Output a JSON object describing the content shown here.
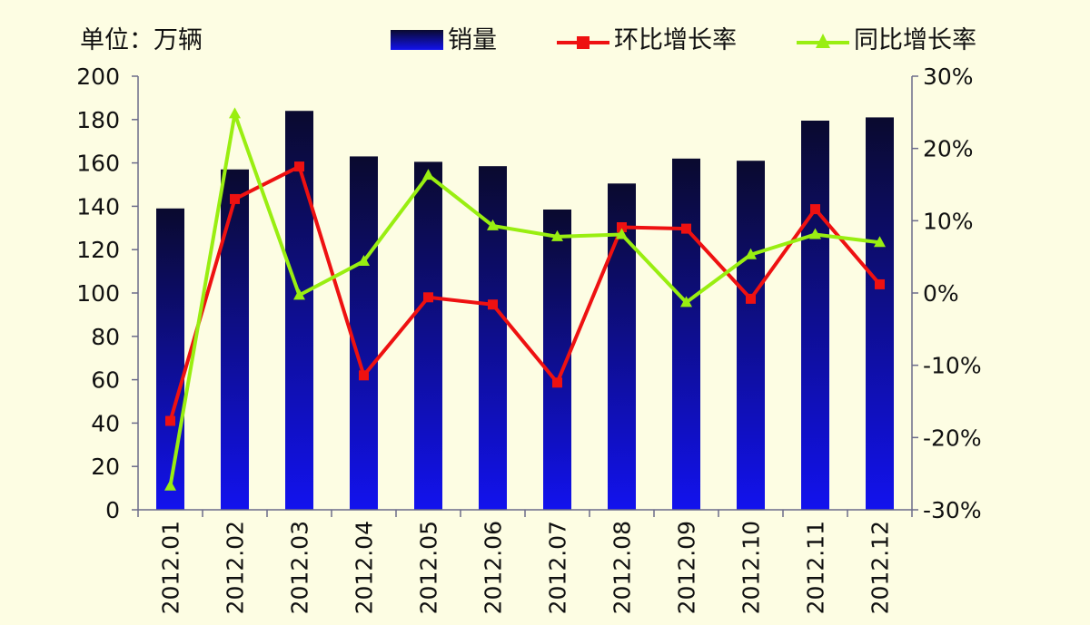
{
  "chart_data": {
    "type": "bar",
    "unit_label": "单位：万辆",
    "categories": [
      "2012.01",
      "2012.02",
      "2012.03",
      "2012.04",
      "2012.05",
      "2012.06",
      "2012.07",
      "2012.08",
      "2012.09",
      "2012.10",
      "2012.11",
      "2012.12"
    ],
    "series": [
      {
        "name": "销量",
        "type": "bar",
        "axis": "left",
        "values": [
          139,
          157,
          184,
          163,
          160.5,
          158.5,
          138.5,
          150.5,
          162,
          161,
          179.5,
          181
        ]
      },
      {
        "name": "环比增长率",
        "type": "line",
        "axis": "right",
        "color": "#ee1111",
        "marker": "square",
        "values": [
          -17.7,
          13.0,
          17.5,
          -11.4,
          -0.6,
          -1.6,
          -12.4,
          9.1,
          8.9,
          -0.8,
          11.6,
          1.2
        ]
      },
      {
        "name": "同比增长率",
        "type": "line",
        "axis": "right",
        "color": "#99ee11",
        "marker": "triangle",
        "values": [
          -26.7,
          24.8,
          -0.3,
          4.4,
          16.3,
          9.3,
          7.8,
          8.1,
          -1.3,
          5.3,
          8.1,
          7.0
        ]
      }
    ],
    "y_left": {
      "ylim": [
        0,
        200
      ],
      "ticks": [
        "0",
        "20",
        "40",
        "60",
        "80",
        "100",
        "120",
        "140",
        "160",
        "180",
        "200"
      ]
    },
    "y_right": {
      "ylim": [
        -30,
        30
      ],
      "ticks": [
        "-30%",
        "-20%",
        "-10%",
        "0%",
        "10%",
        "20%",
        "30%"
      ]
    },
    "bar_gradient": {
      "top": "#0a0a2e",
      "bottom": "#1212ee"
    },
    "legend_position": "top"
  }
}
